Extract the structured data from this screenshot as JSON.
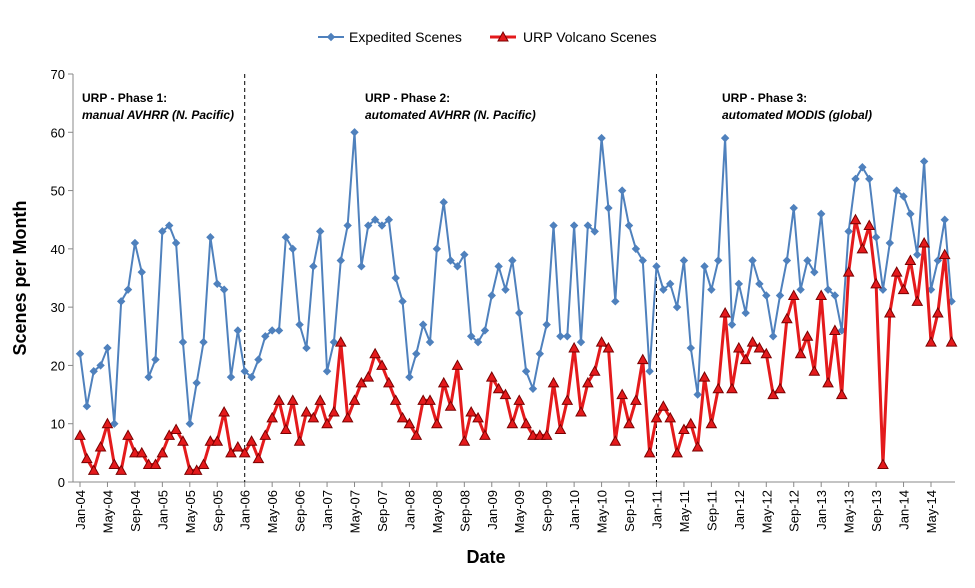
{
  "chart_data": {
    "type": "line",
    "x_label": "Date",
    "y_label": "Scenes per Month",
    "ylim": [
      0,
      70
    ],
    "yticks": [
      0,
      10,
      20,
      30,
      40,
      50,
      60,
      70
    ],
    "grid": false,
    "legend": "top",
    "categories": [
      "Jan-04",
      null,
      null,
      null,
      "May-04",
      null,
      null,
      null,
      "Sep-04",
      null,
      null,
      null,
      "Jan-05",
      null,
      null,
      null,
      "May-05",
      null,
      null,
      null,
      "Sep-05",
      null,
      null,
      null,
      "Jan-06",
      null,
      null,
      null,
      "May-06",
      null,
      null,
      null,
      "Sep-06",
      null,
      null,
      null,
      "Jan-07",
      null,
      null,
      null,
      "May-07",
      null,
      null,
      null,
      "Sep-07",
      null,
      null,
      null,
      "Jan-08",
      null,
      null,
      null,
      "May-08",
      null,
      null,
      null,
      "Sep-08",
      null,
      null,
      null,
      "Jan-09",
      null,
      null,
      null,
      "May-09",
      null,
      null,
      null,
      "Sep-09",
      null,
      null,
      null,
      "Jan-10",
      null,
      null,
      null,
      "May-10",
      null,
      null,
      null,
      "Sep-10",
      null,
      null,
      null,
      "Jan-11",
      null,
      null,
      null,
      "May-11",
      null,
      null,
      null,
      "Sep-11",
      null,
      null,
      null,
      "Jan-12",
      null,
      null,
      null,
      "May-12",
      null,
      null,
      null,
      "Sep-12",
      null,
      null,
      null,
      "Jan-13",
      null,
      null,
      null,
      "May-13",
      null,
      null,
      null,
      "Sep-13",
      null,
      null,
      null,
      "Jan-14",
      null,
      null,
      null,
      "May-14",
      null,
      null,
      null
    ],
    "series": [
      {
        "name": "Expedited Scenes",
        "color": "#4f81bd",
        "marker": "diamond",
        "values": [
          22,
          13,
          19,
          20,
          23,
          10,
          31,
          33,
          41,
          36,
          18,
          21,
          43,
          44,
          41,
          24,
          10,
          17,
          24,
          42,
          34,
          33,
          18,
          26,
          19,
          18,
          21,
          25,
          26,
          26,
          42,
          40,
          27,
          23,
          37,
          43,
          19,
          24,
          38,
          44,
          60,
          37,
          44,
          45,
          44,
          45,
          35,
          31,
          18,
          22,
          27,
          24,
          40,
          48,
          38,
          37,
          39,
          25,
          24,
          26,
          32,
          37,
          33,
          38,
          29,
          19,
          16,
          22,
          27,
          44,
          25,
          25,
          44,
          24,
          44,
          43,
          59,
          47,
          31,
          50,
          44,
          40,
          38,
          19,
          37,
          33,
          34,
          30,
          38,
          23,
          15,
          37,
          33,
          38,
          59,
          27,
          34,
          29,
          38,
          34,
          32,
          25,
          32,
          38,
          47,
          33,
          38,
          36,
          46,
          33,
          32,
          26,
          43,
          52,
          54,
          52,
          42,
          33,
          41,
          50,
          49,
          46,
          39,
          55,
          33,
          38,
          45,
          31
        ]
      },
      {
        "name": "URP Volcano Scenes",
        "color": "#e41a1c",
        "marker": "triangle",
        "values": [
          8,
          4,
          2,
          6,
          10,
          3,
          2,
          8,
          5,
          5,
          3,
          3,
          5,
          8,
          9,
          7,
          2,
          2,
          3,
          7,
          7,
          12,
          5,
          6,
          5,
          7,
          4,
          8,
          11,
          14,
          9,
          14,
          7,
          12,
          11,
          14,
          10,
          12,
          24,
          11,
          14,
          17,
          18,
          22,
          20,
          17,
          14,
          11,
          10,
          8,
          14,
          14,
          10,
          17,
          13,
          20,
          7,
          12,
          11,
          8,
          18,
          16,
          15,
          10,
          14,
          10,
          8,
          8,
          8,
          17,
          9,
          14,
          23,
          12,
          17,
          19,
          24,
          23,
          7,
          15,
          10,
          14,
          21,
          5,
          11,
          13,
          11,
          5,
          9,
          10,
          6,
          18,
          10,
          16,
          29,
          16,
          23,
          21,
          24,
          23,
          22,
          15,
          16,
          28,
          32,
          22,
          25,
          19,
          32,
          17,
          26,
          15,
          36,
          45,
          40,
          44,
          34,
          3,
          29,
          36,
          33,
          38,
          31,
          41,
          24,
          29,
          39,
          24
        ]
      }
    ],
    "annotations": [
      {
        "title": "URP - Phase 1:",
        "subtitle": "manual AVHRR (N. Pacific)"
      },
      {
        "title": "URP - Phase 2:",
        "subtitle": "automated AVHRR (N. Pacific)"
      },
      {
        "title": "URP - Phase 3:",
        "subtitle": "automated MODIS (global)"
      }
    ]
  }
}
